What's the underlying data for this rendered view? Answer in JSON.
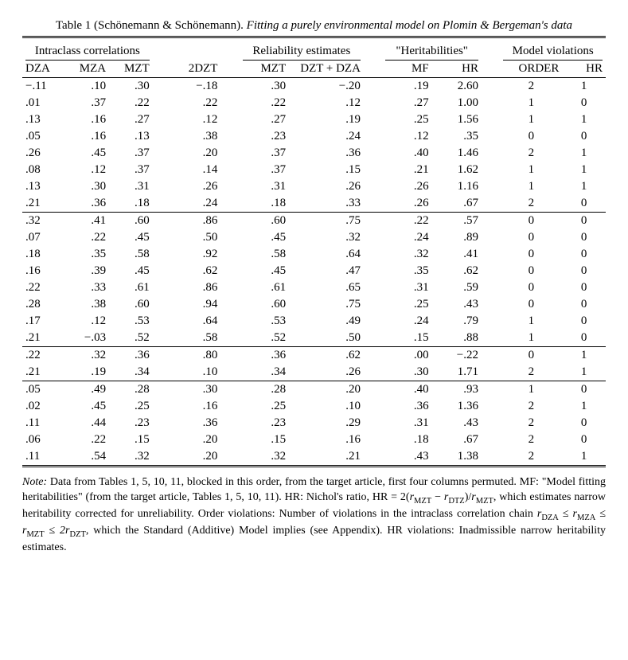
{
  "title_prefix": "Table 1 (Schönemann & Schönemann).",
  "title_italic": "Fitting a purely environmental model on Plomin & Bergeman's data",
  "group_headers": {
    "intraclass": "Intraclass correlations",
    "reliability": "Reliability estimates",
    "heritabilities": "\"Heritabilities\"",
    "violations": "Model violations"
  },
  "columns": {
    "dza": "DZA",
    "mza": "MZA",
    "mzt": "MZT",
    "twodzt": "2DZT",
    "mzt2": "MZT",
    "dztdza": "DZT + DZA",
    "mf": "MF",
    "hr": "HR",
    "order": "ORDER",
    "hr2": "HR"
  },
  "blocks": [
    [
      [
        "−.11",
        ".10",
        ".30",
        "−.18",
        ".30",
        "−.20",
        ".19",
        "2.60",
        "2",
        "1"
      ],
      [
        ".01",
        ".37",
        ".22",
        ".22",
        ".22",
        ".12",
        ".27",
        "1.00",
        "1",
        "0"
      ],
      [
        ".13",
        ".16",
        ".27",
        ".12",
        ".27",
        ".19",
        ".25",
        "1.56",
        "1",
        "1"
      ],
      [
        ".05",
        ".16",
        ".13",
        ".38",
        ".23",
        ".24",
        ".12",
        ".35",
        "0",
        "0"
      ],
      [
        ".26",
        ".45",
        ".37",
        ".20",
        ".37",
        ".36",
        ".40",
        "1.46",
        "2",
        "1"
      ],
      [
        ".08",
        ".12",
        ".37",
        ".14",
        ".37",
        ".15",
        ".21",
        "1.62",
        "1",
        "1"
      ],
      [
        ".13",
        ".30",
        ".31",
        ".26",
        ".31",
        ".26",
        ".26",
        "1.16",
        "1",
        "1"
      ],
      [
        ".21",
        ".36",
        ".18",
        ".24",
        ".18",
        ".33",
        ".26",
        ".67",
        "2",
        "0"
      ]
    ],
    [
      [
        ".32",
        ".41",
        ".60",
        ".86",
        ".60",
        ".75",
        ".22",
        ".57",
        "0",
        "0"
      ],
      [
        ".07",
        ".22",
        ".45",
        ".50",
        ".45",
        ".32",
        ".24",
        ".89",
        "0",
        "0"
      ],
      [
        ".18",
        ".35",
        ".58",
        ".92",
        ".58",
        ".64",
        ".32",
        ".41",
        "0",
        "0"
      ],
      [
        ".16",
        ".39",
        ".45",
        ".62",
        ".45",
        ".47",
        ".35",
        ".62",
        "0",
        "0"
      ],
      [
        ".22",
        ".33",
        ".61",
        ".86",
        ".61",
        ".65",
        ".31",
        ".59",
        "0",
        "0"
      ],
      [
        ".28",
        ".38",
        ".60",
        ".94",
        ".60",
        ".75",
        ".25",
        ".43",
        "0",
        "0"
      ],
      [
        ".17",
        ".12",
        ".53",
        ".64",
        ".53",
        ".49",
        ".24",
        ".79",
        "1",
        "0"
      ],
      [
        ".21",
        "−.03",
        ".52",
        ".58",
        ".52",
        ".50",
        ".15",
        ".88",
        "1",
        "0"
      ]
    ],
    [
      [
        ".22",
        ".32",
        ".36",
        ".80",
        ".36",
        ".62",
        ".00",
        "−.22",
        "0",
        "1"
      ],
      [
        ".21",
        ".19",
        ".34",
        ".10",
        ".34",
        ".26",
        ".30",
        "1.71",
        "2",
        "1"
      ]
    ],
    [
      [
        ".05",
        ".49",
        ".28",
        ".30",
        ".28",
        ".20",
        ".40",
        ".93",
        "1",
        "0"
      ],
      [
        ".02",
        ".45",
        ".25",
        ".16",
        ".25",
        ".10",
        ".36",
        "1.36",
        "2",
        "1"
      ],
      [
        ".11",
        ".44",
        ".23",
        ".36",
        ".23",
        ".29",
        ".31",
        ".43",
        "2",
        "0"
      ],
      [
        ".06",
        ".22",
        ".15",
        ".20",
        ".15",
        ".16",
        ".18",
        ".67",
        "2",
        "0"
      ],
      [
        ".11",
        ".54",
        ".32",
        ".20",
        ".32",
        ".21",
        ".43",
        "1.38",
        "2",
        "1"
      ]
    ]
  ],
  "note_label": "Note:",
  "note_body_1": " Data from Tables 1, 5, 10, 11, blocked in this order, from the target article, first four columns permuted. MF: \"Model fitting heritabilities\" (from the target article, Tables 1, 5, 10, 11). HR: Nichol's ratio, HR = 2(",
  "note_r1": "r",
  "note_sub_mzt": "MZT",
  "note_minus": " − ",
  "note_r2": "r",
  "note_sub_dtz": "DTZ",
  "note_paren": ")/",
  "note_r3": "r",
  "note_body_2": ", which estimates narrow heritability corrected for unreliability. Order violations: Number of violations in the intraclass correlation chain ",
  "note_r_dza": "r",
  "note_sub_dza": "DZA",
  "note_le": " ≤ ",
  "note_r_mza": "r",
  "note_sub_mza": "MZA",
  "note_r_mzt": "r",
  "note_2r": "2r",
  "note_sub_dzt": "DZT",
  "note_body_3": ", which the Standard (Additive) Model implies (see Appendix). HR violations: Inadmissible narrow heritability estimates."
}
